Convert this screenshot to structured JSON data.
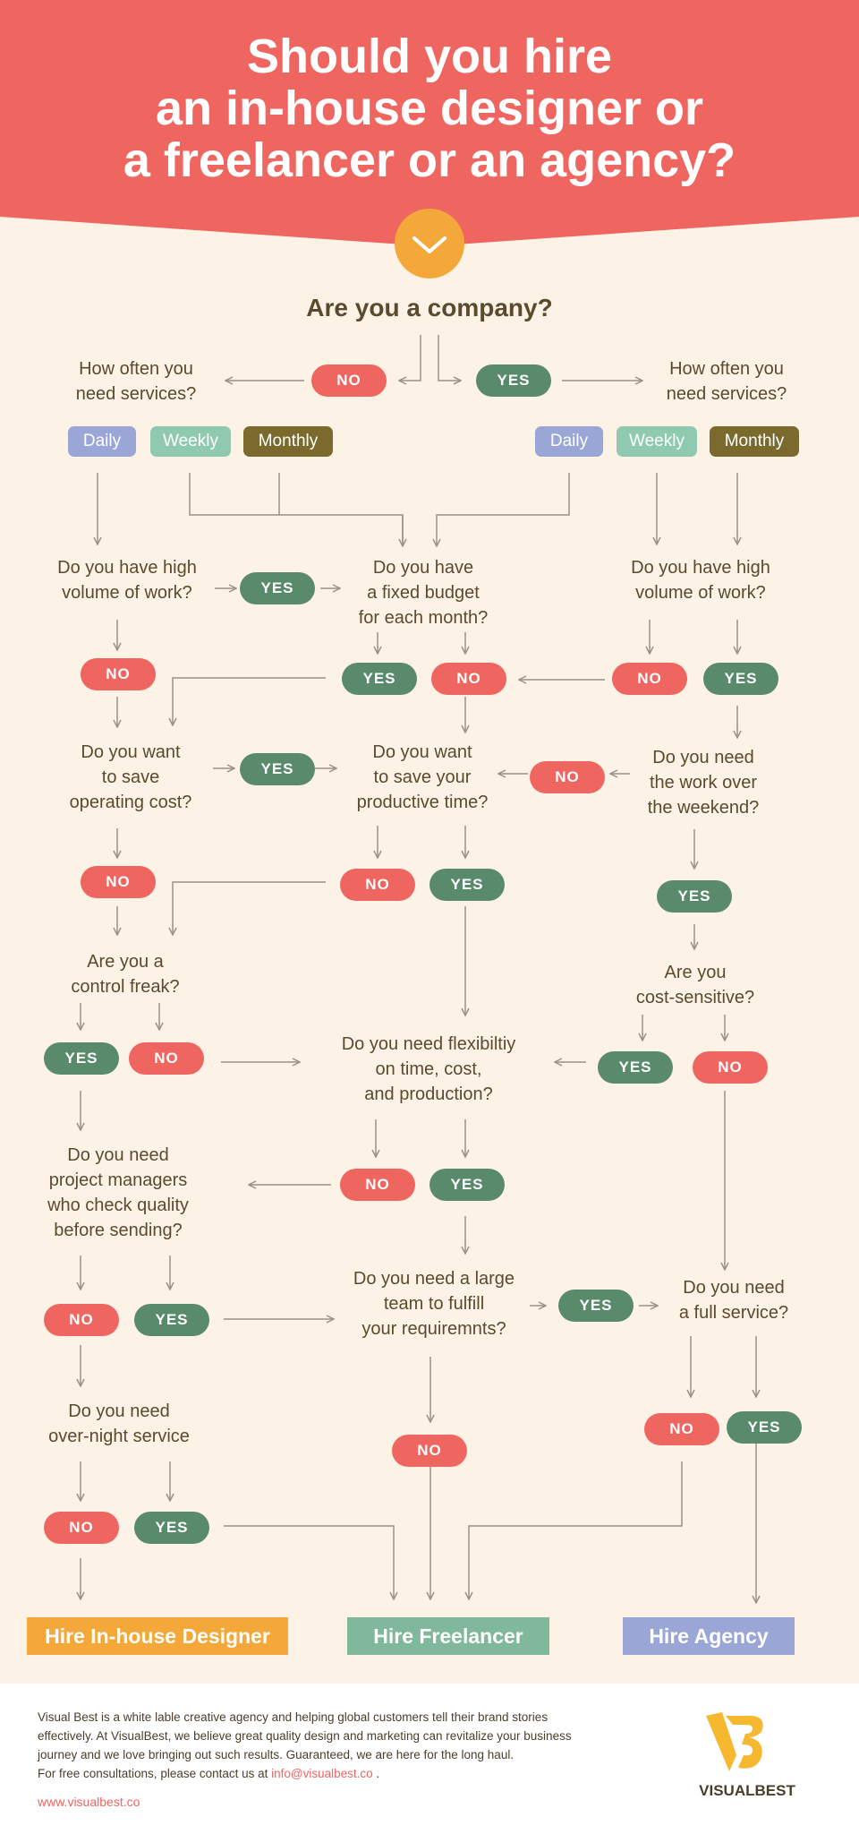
{
  "header": {
    "title_lines": [
      "Should you hire",
      "an in-house designer or",
      "a freelancer or an agency?"
    ]
  },
  "start_question": "Are you a company?",
  "labels": {
    "yes": "YES",
    "no": "NO"
  },
  "frequency_options": {
    "daily": "Daily",
    "weekly": "Weekly",
    "monthly": "Monthly"
  },
  "questions": {
    "how_often_left": "How often you\nneed services?",
    "how_often_right": "How often you\nneed services?",
    "high_volume_left": "Do you have high\nvolume of work?",
    "fixed_budget": "Do you have\na fixed budget\nfor each month?",
    "high_volume_right": "Do you have high\nvolume of work?",
    "save_operating_cost": "Do you want\nto save\noperating cost?",
    "save_productive_time": "Do you want\nto save your\nproductive time?",
    "work_weekend": "Do you need\nthe work over\nthe weekend?",
    "control_freak": "Are you a\ncontrol freak?",
    "cost_sensitive": "Are you\ncost-sensitive?",
    "flexibility": "Do you need flexibiltiy\non time, cost,\nand production?",
    "project_managers": "Do you need\nproject managers\nwho check quality\nbefore sending?",
    "large_team": "Do you need a large\nteam to fulfill\nyour requiremnts?",
    "full_service": "Do you need\na full service?",
    "overnight": "Do you need\nover-night service"
  },
  "results": {
    "inhouse": "Hire In-house Designer",
    "freelancer": "Hire Freelancer",
    "agency": "Hire Agency"
  },
  "footer": {
    "text": "Visual Best is a white lable creative agency and helping global customers tell their brand stories\neffectively. At VisualBest, we believe great quality design and marketing can revitalize your business\njourney and we love bringing out such results. Guaranteed, we are here for the long haul.\nFor free consultations, please contact us at ",
    "email": "info@visualbest.co",
    "email_suffix": " .",
    "url": "www.visualbest.co",
    "logo_text": "VISUALBEST"
  },
  "colors": {
    "header": "#ef6560",
    "background": "#fcf3e6",
    "yes": "#5a8a6c",
    "no": "#ef6560",
    "inhouse": "#f4a83a",
    "freelancer": "#7fb89a",
    "agency": "#9aa7d6",
    "logo": "#f5b82e"
  }
}
